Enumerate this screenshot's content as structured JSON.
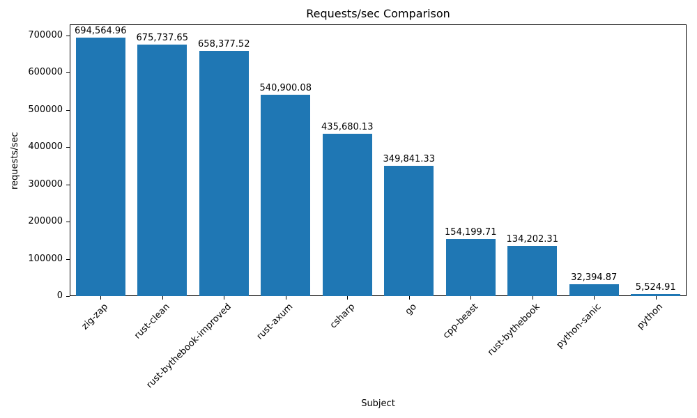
{
  "chart_data": {
    "type": "bar",
    "title": "Requests/sec Comparison",
    "xlabel": "Subject",
    "ylabel": "requests/sec",
    "categories": [
      "zig-zap",
      "rust-clean",
      "rust-bythebook-improved",
      "rust-axum",
      "csharp",
      "go",
      "cpp-beast",
      "rust-bythebook",
      "python-sanic",
      "python"
    ],
    "values": [
      694564.96,
      675737.65,
      658377.52,
      540900.08,
      435680.13,
      349841.33,
      154199.71,
      134202.31,
      32394.87,
      5524.91
    ],
    "value_labels": [
      "694,564.96",
      "675,737.65",
      "658,377.52",
      "540,900.08",
      "435,680.13",
      "349,841.33",
      "154,199.71",
      "134,202.31",
      "32,394.87",
      "5,524.91"
    ],
    "yticks": [
      0,
      100000,
      200000,
      300000,
      400000,
      500000,
      600000,
      700000
    ],
    "ytick_labels": [
      "0",
      "100000",
      "200000",
      "300000",
      "400000",
      "500000",
      "600000",
      "700000"
    ],
    "ylim": [
      0,
      730000
    ],
    "bar_color": "#1f77b4",
    "grid": false,
    "legend": false
  }
}
